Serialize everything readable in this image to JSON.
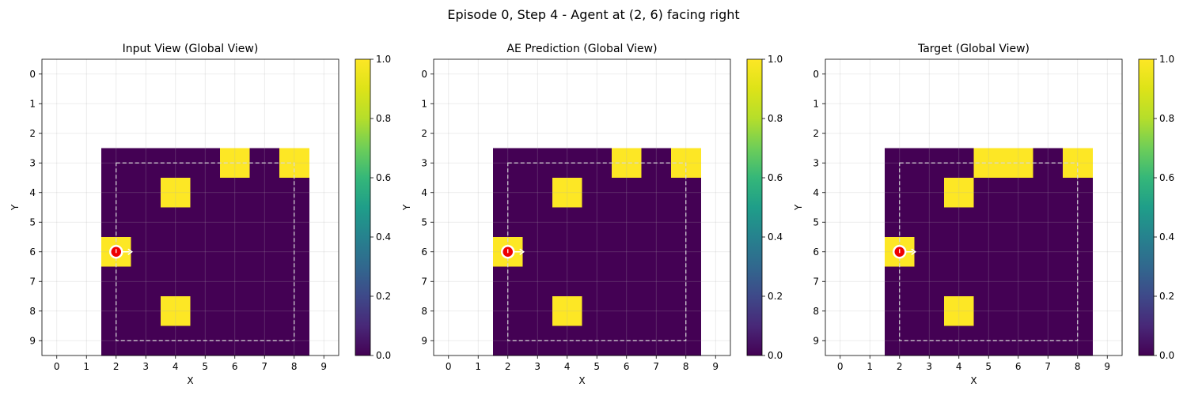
{
  "figure": {
    "suptitle": "Episode 0, Step 4 - Agent at (2, 6) facing right"
  },
  "chart_data": [
    {
      "type": "heatmap",
      "title": "Input View (Global View)",
      "xlabel": "X",
      "ylabel": "Y",
      "x_ticks": [
        0,
        1,
        2,
        3,
        4,
        5,
        6,
        7,
        8,
        9
      ],
      "y_ticks": [
        0,
        1,
        2,
        3,
        4,
        5,
        6,
        7,
        8,
        9
      ],
      "grid": true,
      "colormap": "viridis",
      "colorbar_range": [
        0,
        1
      ],
      "colorbar_ticks": [
        "0.0",
        "0.2",
        "0.4",
        "0.6",
        "0.8",
        "1.0"
      ],
      "values": [
        [
          null,
          null,
          null,
          null,
          null,
          null,
          null,
          null,
          null,
          null
        ],
        [
          null,
          null,
          null,
          null,
          null,
          null,
          null,
          null,
          null,
          null
        ],
        [
          null,
          null,
          null,
          null,
          null,
          null,
          null,
          null,
          null,
          null
        ],
        [
          null,
          null,
          0,
          0,
          0,
          0,
          1,
          0,
          1,
          null
        ],
        [
          null,
          null,
          0,
          0,
          1,
          0,
          0,
          0,
          0,
          null
        ],
        [
          null,
          null,
          0,
          0,
          0,
          0,
          0,
          0,
          0,
          null
        ],
        [
          null,
          null,
          1,
          0,
          0,
          0,
          0,
          0,
          0,
          null
        ],
        [
          null,
          null,
          0,
          0,
          0,
          0,
          0,
          0,
          0,
          null
        ],
        [
          null,
          null,
          0,
          0,
          1,
          0,
          0,
          0,
          0,
          null
        ],
        [
          null,
          null,
          0,
          0,
          0,
          0,
          0,
          0,
          0,
          null
        ]
      ],
      "dashed_region": {
        "x": [
          2,
          8
        ],
        "y": [
          3,
          9
        ]
      },
      "agent": {
        "x": 2,
        "y": 6,
        "facing": "right"
      }
    },
    {
      "type": "heatmap",
      "title": "AE Prediction (Global View)",
      "xlabel": "X",
      "ylabel": "Y",
      "x_ticks": [
        0,
        1,
        2,
        3,
        4,
        5,
        6,
        7,
        8,
        9
      ],
      "y_ticks": [
        0,
        1,
        2,
        3,
        4,
        5,
        6,
        7,
        8,
        9
      ],
      "grid": true,
      "colormap": "viridis",
      "colorbar_range": [
        0,
        1
      ],
      "colorbar_ticks": [
        "0.0",
        "0.2",
        "0.4",
        "0.6",
        "0.8",
        "1.0"
      ],
      "values": [
        [
          null,
          null,
          null,
          null,
          null,
          null,
          null,
          null,
          null,
          null
        ],
        [
          null,
          null,
          null,
          null,
          null,
          null,
          null,
          null,
          null,
          null
        ],
        [
          null,
          null,
          null,
          null,
          null,
          null,
          null,
          null,
          null,
          null
        ],
        [
          null,
          null,
          0,
          0,
          0,
          0,
          1,
          0,
          1,
          null
        ],
        [
          null,
          null,
          0,
          0,
          1,
          0,
          0,
          0,
          0,
          null
        ],
        [
          null,
          null,
          0,
          0,
          0,
          0,
          0,
          0,
          0,
          null
        ],
        [
          null,
          null,
          1,
          0,
          0,
          0,
          0,
          0,
          0,
          null
        ],
        [
          null,
          null,
          0,
          0,
          0,
          0,
          0,
          0,
          0,
          null
        ],
        [
          null,
          null,
          0,
          0,
          1,
          0,
          0,
          0,
          0,
          null
        ],
        [
          null,
          null,
          0,
          0,
          0,
          0,
          0,
          0,
          0,
          null
        ]
      ],
      "dashed_region": {
        "x": [
          2,
          8
        ],
        "y": [
          3,
          9
        ]
      },
      "agent": {
        "x": 2,
        "y": 6,
        "facing": "right"
      }
    },
    {
      "type": "heatmap",
      "title": "Target (Global View)",
      "xlabel": "X",
      "ylabel": "Y",
      "x_ticks": [
        0,
        1,
        2,
        3,
        4,
        5,
        6,
        7,
        8,
        9
      ],
      "y_ticks": [
        0,
        1,
        2,
        3,
        4,
        5,
        6,
        7,
        8,
        9
      ],
      "grid": true,
      "colormap": "viridis",
      "colorbar_range": [
        0,
        1
      ],
      "colorbar_ticks": [
        "0.0",
        "0.2",
        "0.4",
        "0.6",
        "0.8",
        "1.0"
      ],
      "values": [
        [
          null,
          null,
          null,
          null,
          null,
          null,
          null,
          null,
          null,
          null
        ],
        [
          null,
          null,
          null,
          null,
          null,
          null,
          null,
          null,
          null,
          null
        ],
        [
          null,
          null,
          null,
          null,
          null,
          null,
          null,
          null,
          null,
          null
        ],
        [
          null,
          null,
          0,
          0,
          0,
          1,
          1,
          0,
          1,
          null
        ],
        [
          null,
          null,
          0,
          0,
          1,
          0,
          0,
          0,
          0,
          null
        ],
        [
          null,
          null,
          0,
          0,
          0,
          0,
          0,
          0,
          0,
          null
        ],
        [
          null,
          null,
          1,
          0,
          0,
          0,
          0,
          0,
          0,
          null
        ],
        [
          null,
          null,
          0,
          0,
          0,
          0,
          0,
          0,
          0,
          null
        ],
        [
          null,
          null,
          0,
          0,
          1,
          0,
          0,
          0,
          0,
          null
        ],
        [
          null,
          null,
          0,
          0,
          0,
          0,
          0,
          0,
          0,
          null
        ]
      ],
      "dashed_region": {
        "x": [
          2,
          8
        ],
        "y": [
          3,
          9
        ]
      },
      "agent": {
        "x": 2,
        "y": 6,
        "facing": "right"
      }
    }
  ]
}
